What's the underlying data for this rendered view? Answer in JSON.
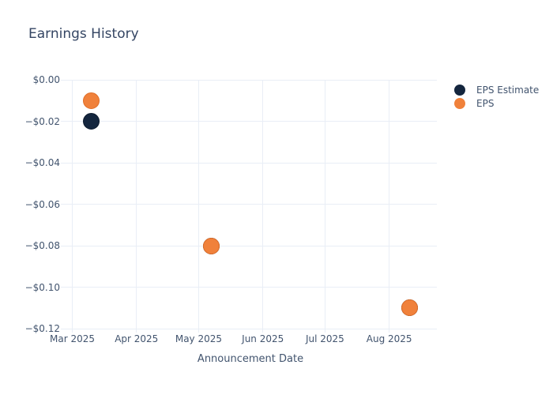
{
  "chart_data": {
    "type": "scatter",
    "title": "Earnings History",
    "xlabel": "Announcement Date",
    "ylabel": "",
    "grid": true,
    "legend_position": "outside-top-right",
    "x_range": [
      "2025-02-25",
      "2025-08-24"
    ],
    "y_range": [
      0,
      -0.12
    ],
    "x_ticks": [
      {
        "date": "2025-03-01",
        "label": "Mar 2025"
      },
      {
        "date": "2025-04-01",
        "label": "Apr 2025"
      },
      {
        "date": "2025-05-01",
        "label": "May 2025"
      },
      {
        "date": "2025-06-01",
        "label": "Jun 2025"
      },
      {
        "date": "2025-07-01",
        "label": "Jul 2025"
      },
      {
        "date": "2025-08-01",
        "label": "Aug 2025"
      }
    ],
    "y_ticks": [
      {
        "value": 0.0,
        "label": "$0.00"
      },
      {
        "value": -0.02,
        "label": "−$0.02"
      },
      {
        "value": -0.04,
        "label": "−$0.04"
      },
      {
        "value": -0.06,
        "label": "−$0.06"
      },
      {
        "value": -0.08,
        "label": "−$0.08"
      },
      {
        "value": -0.1,
        "label": "−$0.10"
      },
      {
        "value": -0.12,
        "label": "−$0.12"
      }
    ],
    "series": [
      {
        "name": "EPS Estimate",
        "color": "#14263e",
        "border_color": "#0d1b2e",
        "marker_size": 21,
        "points": [
          {
            "x": "2025-03-10",
            "y": -0.02
          },
          {
            "x": "2025-05-07",
            "y": -0.08
          },
          {
            "x": "2025-08-11",
            "y": -0.11
          }
        ]
      },
      {
        "name": "EPS",
        "color": "#f0813b",
        "border_color": "#e06e28",
        "marker_size": 21,
        "points": [
          {
            "x": "2025-03-10",
            "y": -0.01
          },
          {
            "x": "2025-05-07",
            "y": -0.08
          },
          {
            "x": "2025-08-11",
            "y": -0.11
          }
        ]
      }
    ]
  },
  "colors": {
    "background": "#ffffff",
    "gridline": "#e9eef6",
    "title_text": "#344563",
    "tick_text": "#42546e",
    "legend_text": "#42546e",
    "eps_estimate_marker": "#14263e",
    "eps_marker": "#f0813b"
  }
}
